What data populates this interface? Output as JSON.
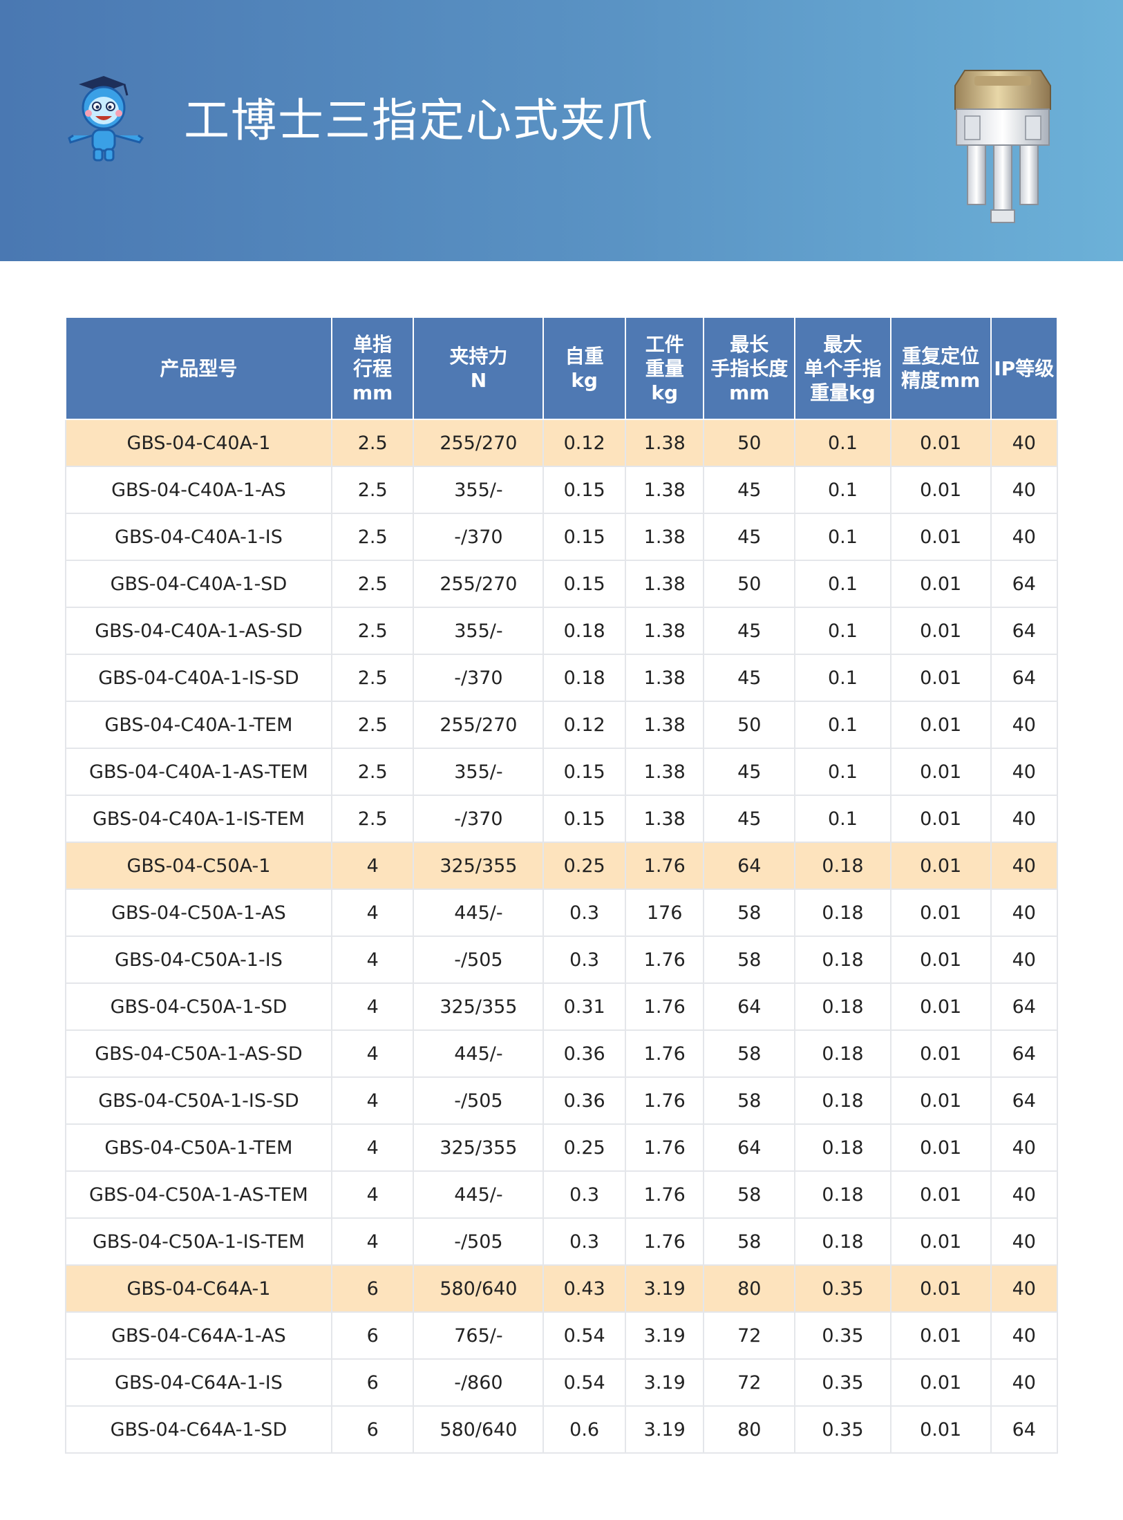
{
  "header": {
    "title": "工博士三指定心式夹爪",
    "logo_icon": "robot-mascot-logo-icon",
    "product_image": "three-finger-gripper-image",
    "colors": {
      "banner_start": "#4a78b2",
      "banner_end": "#6cb1d8",
      "table_header": "#4f79b3",
      "highlight_row": "#fde3bd"
    }
  },
  "table": {
    "headers": [
      {
        "lines": [
          "产品型号"
        ]
      },
      {
        "lines": [
          "单指",
          "行程",
          "mm"
        ]
      },
      {
        "lines": [
          "夹持力",
          "N"
        ]
      },
      {
        "lines": [
          "自重",
          "kg"
        ]
      },
      {
        "lines": [
          "工件",
          "重量",
          "kg"
        ]
      },
      {
        "lines": [
          "最长",
          "手指长度",
          "mm"
        ]
      },
      {
        "lines": [
          "最大",
          "单个手指",
          "重量kg"
        ]
      },
      {
        "lines": [
          "重复定位",
          "精度mm"
        ]
      },
      {
        "lines": [
          "IP等级"
        ]
      }
    ],
    "rows": [
      {
        "highlight": true,
        "cells": [
          "GBS-04-C40A-1",
          "2.5",
          "255/270",
          "0.12",
          "1.38",
          "50",
          "0.1",
          "0.01",
          "40"
        ]
      },
      {
        "highlight": false,
        "cells": [
          "GBS-04-C40A-1-AS",
          "2.5",
          "355/-",
          "0.15",
          "1.38",
          "45",
          "0.1",
          "0.01",
          "40"
        ]
      },
      {
        "highlight": false,
        "cells": [
          "GBS-04-C40A-1-IS",
          "2.5",
          "-/370",
          "0.15",
          "1.38",
          "45",
          "0.1",
          "0.01",
          "40"
        ]
      },
      {
        "highlight": false,
        "cells": [
          "GBS-04-C40A-1-SD",
          "2.5",
          "255/270",
          "0.15",
          "1.38",
          "50",
          "0.1",
          "0.01",
          "64"
        ]
      },
      {
        "highlight": false,
        "cells": [
          "GBS-04-C40A-1-AS-SD",
          "2.5",
          "355/-",
          "0.18",
          "1.38",
          "45",
          "0.1",
          "0.01",
          "64"
        ]
      },
      {
        "highlight": false,
        "cells": [
          "GBS-04-C40A-1-IS-SD",
          "2.5",
          "-/370",
          "0.18",
          "1.38",
          "45",
          "0.1",
          "0.01",
          "64"
        ]
      },
      {
        "highlight": false,
        "cells": [
          "GBS-04-C40A-1-TEM",
          "2.5",
          "255/270",
          "0.12",
          "1.38",
          "50",
          "0.1",
          "0.01",
          "40"
        ]
      },
      {
        "highlight": false,
        "cells": [
          "GBS-04-C40A-1-AS-TEM",
          "2.5",
          "355/-",
          "0.15",
          "1.38",
          "45",
          "0.1",
          "0.01",
          "40"
        ]
      },
      {
        "highlight": false,
        "cells": [
          "GBS-04-C40A-1-IS-TEM",
          "2.5",
          "-/370",
          "0.15",
          "1.38",
          "45",
          "0.1",
          "0.01",
          "40"
        ]
      },
      {
        "highlight": true,
        "cells": [
          "GBS-04-C50A-1",
          "4",
          "325/355",
          "0.25",
          "1.76",
          "64",
          "0.18",
          "0.01",
          "40"
        ]
      },
      {
        "highlight": false,
        "cells": [
          "GBS-04-C50A-1-AS",
          "4",
          "445/-",
          "0.3",
          "176",
          "58",
          "0.18",
          "0.01",
          "40"
        ]
      },
      {
        "highlight": false,
        "cells": [
          "GBS-04-C50A-1-IS",
          "4",
          "-/505",
          "0.3",
          "1.76",
          "58",
          "0.18",
          "0.01",
          "40"
        ]
      },
      {
        "highlight": false,
        "cells": [
          "GBS-04-C50A-1-SD",
          "4",
          "325/355",
          "0.31",
          "1.76",
          "64",
          "0.18",
          "0.01",
          "64"
        ]
      },
      {
        "highlight": false,
        "cells": [
          "GBS-04-C50A-1-AS-SD",
          "4",
          "445/-",
          "0.36",
          "1.76",
          "58",
          "0.18",
          "0.01",
          "64"
        ]
      },
      {
        "highlight": false,
        "cells": [
          "GBS-04-C50A-1-IS-SD",
          "4",
          "-/505",
          "0.36",
          "1.76",
          "58",
          "0.18",
          "0.01",
          "64"
        ]
      },
      {
        "highlight": false,
        "cells": [
          "GBS-04-C50A-1-TEM",
          "4",
          "325/355",
          "0.25",
          "1.76",
          "64",
          "0.18",
          "0.01",
          "40"
        ]
      },
      {
        "highlight": false,
        "cells": [
          "GBS-04-C50A-1-AS-TEM",
          "4",
          "445/-",
          "0.3",
          "1.76",
          "58",
          "0.18",
          "0.01",
          "40"
        ]
      },
      {
        "highlight": false,
        "cells": [
          "GBS-04-C50A-1-IS-TEM",
          "4",
          "-/505",
          "0.3",
          "1.76",
          "58",
          "0.18",
          "0.01",
          "40"
        ]
      },
      {
        "highlight": true,
        "cells": [
          "GBS-04-C64A-1",
          "6",
          "580/640",
          "0.43",
          "3.19",
          "80",
          "0.35",
          "0.01",
          "40"
        ]
      },
      {
        "highlight": false,
        "cells": [
          "GBS-04-C64A-1-AS",
          "6",
          "765/-",
          "0.54",
          "3.19",
          "72",
          "0.35",
          "0.01",
          "40"
        ]
      },
      {
        "highlight": false,
        "cells": [
          "GBS-04-C64A-1-IS",
          "6",
          "-/860",
          "0.54",
          "3.19",
          "72",
          "0.35",
          "0.01",
          "40"
        ]
      },
      {
        "highlight": false,
        "cells": [
          "GBS-04-C64A-1-SD",
          "6",
          "580/640",
          "0.6",
          "3.19",
          "80",
          "0.35",
          "0.01",
          "64"
        ]
      }
    ]
  }
}
